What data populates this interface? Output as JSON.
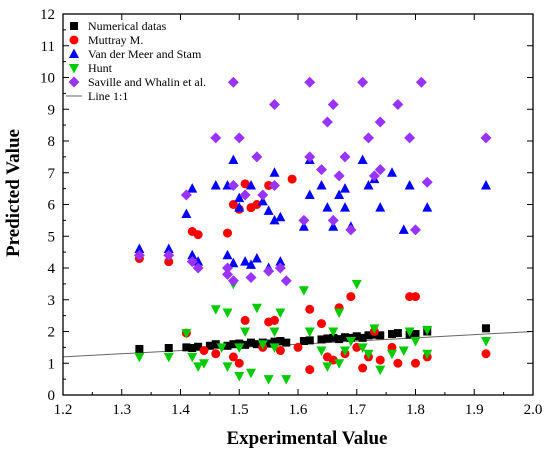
{
  "chart_data": {
    "type": "scatter",
    "xlabel": "Experimental  Value",
    "ylabel": "Predicted Value",
    "xlim": [
      1.2,
      2.0
    ],
    "ylim": [
      0,
      12
    ],
    "xticks": [
      1.2,
      1.3,
      1.4,
      1.5,
      1.6,
      1.7,
      1.8,
      1.9,
      2.0
    ],
    "yticks": [
      0,
      1,
      2,
      3,
      4,
      5,
      6,
      7,
      8,
      9,
      10,
      11,
      12
    ],
    "grid": false,
    "legend_position": "top-left",
    "series": [
      {
        "name": "Numerical datas",
        "marker": "square",
        "color": "#000000",
        "points": [
          [
            1.33,
            1.45
          ],
          [
            1.38,
            1.48
          ],
          [
            1.41,
            1.5
          ],
          [
            1.42,
            1.48
          ],
          [
            1.43,
            1.52
          ],
          [
            1.45,
            1.55
          ],
          [
            1.46,
            1.6
          ],
          [
            1.48,
            1.55
          ],
          [
            1.49,
            1.6
          ],
          [
            1.5,
            1.62
          ],
          [
            1.51,
            1.58
          ],
          [
            1.52,
            1.65
          ],
          [
            1.53,
            1.6
          ],
          [
            1.54,
            1.65
          ],
          [
            1.55,
            1.62
          ],
          [
            1.56,
            1.68
          ],
          [
            1.57,
            1.7
          ],
          [
            1.58,
            1.65
          ],
          [
            1.61,
            1.7
          ],
          [
            1.62,
            1.72
          ],
          [
            1.64,
            1.75
          ],
          [
            1.65,
            1.78
          ],
          [
            1.66,
            1.8
          ],
          [
            1.67,
            1.76
          ],
          [
            1.68,
            1.82
          ],
          [
            1.69,
            1.8
          ],
          [
            1.7,
            1.85
          ],
          [
            1.71,
            1.8
          ],
          [
            1.72,
            1.88
          ],
          [
            1.73,
            1.9
          ],
          [
            1.74,
            1.88
          ],
          [
            1.76,
            1.92
          ],
          [
            1.77,
            1.95
          ],
          [
            1.79,
            1.9
          ],
          [
            1.8,
            1.92
          ],
          [
            1.82,
            2.0
          ],
          [
            1.92,
            2.1
          ]
        ]
      },
      {
        "name": "Muttray M.",
        "marker": "circle",
        "color": "#ff0000",
        "points": [
          [
            1.33,
            4.3
          ],
          [
            1.38,
            4.2
          ],
          [
            1.41,
            1.95
          ],
          [
            1.42,
            5.15
          ],
          [
            1.43,
            5.05
          ],
          [
            1.44,
            1.4
          ],
          [
            1.46,
            1.3
          ],
          [
            1.48,
            5.1
          ],
          [
            1.49,
            6.0
          ],
          [
            1.49,
            1.2
          ],
          [
            1.5,
            1.0
          ],
          [
            1.5,
            5.85
          ],
          [
            1.51,
            6.65
          ],
          [
            1.51,
            2.35
          ],
          [
            1.52,
            5.9
          ],
          [
            1.53,
            6.0
          ],
          [
            1.54,
            1.5
          ],
          [
            1.55,
            6.6
          ],
          [
            1.55,
            2.3
          ],
          [
            1.56,
            2.35
          ],
          [
            1.57,
            1.4
          ],
          [
            1.59,
            6.8
          ],
          [
            1.6,
            1.5
          ],
          [
            1.62,
            2.7
          ],
          [
            1.62,
            0.8
          ],
          [
            1.64,
            2.25
          ],
          [
            1.65,
            1.2
          ],
          [
            1.66,
            1.1
          ],
          [
            1.67,
            2.75
          ],
          [
            1.68,
            1.3
          ],
          [
            1.69,
            3.1
          ],
          [
            1.7,
            1.5
          ],
          [
            1.71,
            0.85
          ],
          [
            1.72,
            1.2
          ],
          [
            1.73,
            2.0
          ],
          [
            1.74,
            1.1
          ],
          [
            1.76,
            1.5
          ],
          [
            1.77,
            1.0
          ],
          [
            1.79,
            3.1
          ],
          [
            1.8,
            3.1
          ],
          [
            1.8,
            1.0
          ],
          [
            1.82,
            1.2
          ],
          [
            1.92,
            1.3
          ]
        ]
      },
      {
        "name": "Van der Meer and Stam",
        "marker": "triangle-up",
        "color": "#0000ff",
        "points": [
          [
            1.33,
            4.6
          ],
          [
            1.38,
            4.6
          ],
          [
            1.41,
            5.7
          ],
          [
            1.42,
            6.5
          ],
          [
            1.42,
            4.4
          ],
          [
            1.43,
            4.2
          ],
          [
            1.46,
            6.6
          ],
          [
            1.48,
            6.6
          ],
          [
            1.48,
            4.4
          ],
          [
            1.49,
            7.4
          ],
          [
            1.49,
            4.15
          ],
          [
            1.5,
            6.2
          ],
          [
            1.5,
            5.9
          ],
          [
            1.51,
            4.2
          ],
          [
            1.52,
            4.1
          ],
          [
            1.52,
            6.6
          ],
          [
            1.53,
            4.3
          ],
          [
            1.54,
            6.1
          ],
          [
            1.55,
            5.8
          ],
          [
            1.55,
            4.0
          ],
          [
            1.56,
            5.5
          ],
          [
            1.56,
            7.0
          ],
          [
            1.57,
            5.6
          ],
          [
            1.57,
            4.2
          ],
          [
            1.61,
            5.3
          ],
          [
            1.62,
            7.4
          ],
          [
            1.62,
            6.3
          ],
          [
            1.64,
            6.6
          ],
          [
            1.65,
            5.9
          ],
          [
            1.66,
            5.3
          ],
          [
            1.67,
            6.3
          ],
          [
            1.68,
            6.5
          ],
          [
            1.68,
            5.9
          ],
          [
            1.69,
            5.3
          ],
          [
            1.71,
            7.4
          ],
          [
            1.72,
            6.6
          ],
          [
            1.73,
            6.8
          ],
          [
            1.74,
            5.9
          ],
          [
            1.76,
            7.0
          ],
          [
            1.78,
            5.2
          ],
          [
            1.79,
            6.6
          ],
          [
            1.82,
            5.9
          ],
          [
            1.92,
            6.6
          ]
        ]
      },
      {
        "name": "Hunt",
        "marker": "triangle-down",
        "color": "#00cc00",
        "points": [
          [
            1.33,
            1.2
          ],
          [
            1.38,
            1.2
          ],
          [
            1.41,
            1.95
          ],
          [
            1.42,
            1.2
          ],
          [
            1.43,
            0.9
          ],
          [
            1.44,
            1.0
          ],
          [
            1.46,
            2.7
          ],
          [
            1.47,
            1.5
          ],
          [
            1.48,
            2.6
          ],
          [
            1.48,
            0.9
          ],
          [
            1.49,
            3.5
          ],
          [
            1.5,
            0.6
          ],
          [
            1.5,
            1.5
          ],
          [
            1.51,
            2.0
          ],
          [
            1.52,
            0.7
          ],
          [
            1.53,
            2.75
          ],
          [
            1.54,
            1.6
          ],
          [
            1.55,
            0.5
          ],
          [
            1.56,
            2.0
          ],
          [
            1.56,
            1.5
          ],
          [
            1.57,
            2.6
          ],
          [
            1.58,
            0.5
          ],
          [
            1.61,
            3.3
          ],
          [
            1.62,
            2.0
          ],
          [
            1.64,
            1.4
          ],
          [
            1.65,
            0.9
          ],
          [
            1.66,
            2.0
          ],
          [
            1.67,
            2.6
          ],
          [
            1.67,
            1.0
          ],
          [
            1.68,
            1.4
          ],
          [
            1.69,
            1.7
          ],
          [
            1.7,
            3.5
          ],
          [
            1.71,
            1.5
          ],
          [
            1.72,
            1.3
          ],
          [
            1.73,
            2.1
          ],
          [
            1.74,
            0.8
          ],
          [
            1.76,
            1.3
          ],
          [
            1.78,
            1.4
          ],
          [
            1.79,
            2.0
          ],
          [
            1.8,
            1.7
          ],
          [
            1.82,
            2.05
          ],
          [
            1.82,
            1.3
          ],
          [
            1.92,
            1.7
          ]
        ]
      },
      {
        "name": "Saville and Whalin et al.",
        "marker": "diamond",
        "color": "#9933ff",
        "points": [
          [
            1.33,
            4.4
          ],
          [
            1.38,
            4.4
          ],
          [
            1.41,
            6.3
          ],
          [
            1.42,
            4.2
          ],
          [
            1.43,
            4.0
          ],
          [
            1.46,
            8.1
          ],
          [
            1.48,
            4.0
          ],
          [
            1.48,
            3.8
          ],
          [
            1.49,
            9.85
          ],
          [
            1.49,
            6.6
          ],
          [
            1.49,
            3.6
          ],
          [
            1.5,
            8.1
          ],
          [
            1.51,
            6.3
          ],
          [
            1.52,
            3.7
          ],
          [
            1.53,
            7.5
          ],
          [
            1.54,
            6.3
          ],
          [
            1.55,
            3.9
          ],
          [
            1.56,
            9.15
          ],
          [
            1.56,
            6.6
          ],
          [
            1.57,
            4.0
          ],
          [
            1.58,
            3.6
          ],
          [
            1.61,
            5.5
          ],
          [
            1.62,
            9.85
          ],
          [
            1.62,
            7.5
          ],
          [
            1.64,
            7.1
          ],
          [
            1.65,
            8.6
          ],
          [
            1.66,
            5.5
          ],
          [
            1.66,
            9.15
          ],
          [
            1.67,
            6.9
          ],
          [
            1.68,
            7.5
          ],
          [
            1.69,
            5.2
          ],
          [
            1.71,
            9.85
          ],
          [
            1.72,
            8.1
          ],
          [
            1.73,
            6.9
          ],
          [
            1.74,
            8.6
          ],
          [
            1.74,
            7.1
          ],
          [
            1.77,
            9.15
          ],
          [
            1.79,
            8.1
          ],
          [
            1.8,
            5.2
          ],
          [
            1.81,
            9.85
          ],
          [
            1.82,
            6.7
          ],
          [
            1.92,
            8.1
          ]
        ]
      },
      {
        "name": "Line 1:1",
        "type": "line",
        "color": "#666666",
        "x": [
          1.2,
          2.0
        ],
        "y": [
          1.2,
          2.0
        ]
      }
    ]
  }
}
